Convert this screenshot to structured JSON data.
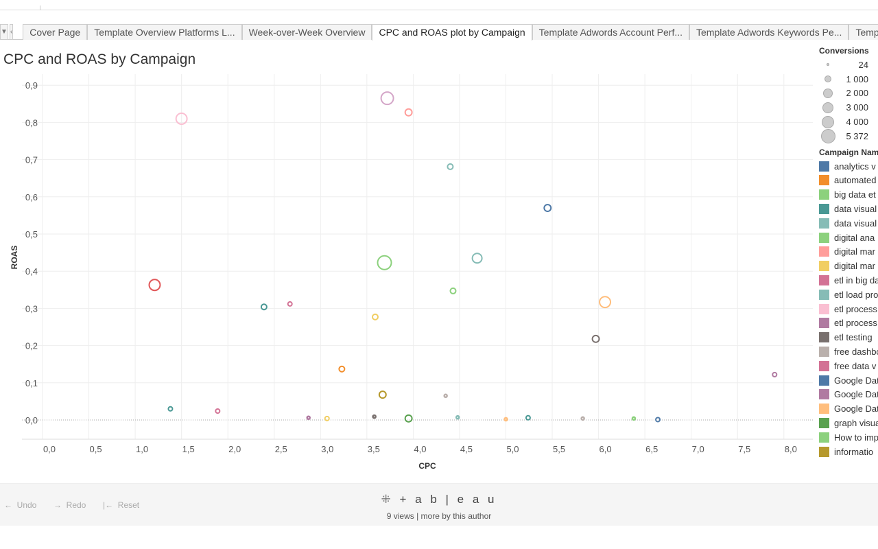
{
  "tabs": [
    "Cover Page",
    "Template Overview Platforms L...",
    "Week-over-Week Overview",
    "CPC and ROAS plot by Campaign",
    "Template Adwords Account Perf...",
    "Template Adwords Keywords Pe...",
    "Templa"
  ],
  "active_tab": 3,
  "title": "CPC and ROAS by Campaign",
  "size_legend": {
    "title": "Conversions",
    "items": [
      "24",
      "1 000",
      "2 000",
      "3 000",
      "4 000",
      "5 372"
    ]
  },
  "color_legend": {
    "title": "Campaign Name",
    "items": [
      {
        "label": "analytics v",
        "color": "#4e79a7"
      },
      {
        "label": "automated",
        "color": "#f28e2b"
      },
      {
        "label": "big data et",
        "color": "#8cd17d"
      },
      {
        "label": "data visual",
        "color": "#499894"
      },
      {
        "label": "data visual",
        "color": "#86bcb6"
      },
      {
        "label": "digital ana",
        "color": "#8cd17d"
      },
      {
        "label": "digital mar",
        "color": "#ff9d9a"
      },
      {
        "label": "digital mar",
        "color": "#f1ce63"
      },
      {
        "label": "etl in big da",
        "color": "#d37295"
      },
      {
        "label": "etl load pro",
        "color": "#86bcb6"
      },
      {
        "label": "etl process",
        "color": "#fabfd2"
      },
      {
        "label": "etl process",
        "color": "#b07aa1"
      },
      {
        "label": "etl testing",
        "color": "#79706e"
      },
      {
        "label": "free dashbo",
        "color": "#bab0ac"
      },
      {
        "label": "free data v",
        "color": "#d37295"
      },
      {
        "label": "Google Dat",
        "color": "#4e79a7"
      },
      {
        "label": "Google Dat",
        "color": "#b07aa1"
      },
      {
        "label": "Google Dat",
        "color": "#ffbe7d"
      },
      {
        "label": "graph visua",
        "color": "#59a14f"
      },
      {
        "label": "How to imp",
        "color": "#8cd17d"
      },
      {
        "label": "informatio",
        "color": "#b6992d"
      }
    ]
  },
  "chart_data": {
    "type": "scatter",
    "xlabel": "CPC",
    "ylabel": "ROAS",
    "xlim": [
      0,
      8.3
    ],
    "ylim": [
      -0.05,
      0.92
    ],
    "x_ticks": [
      "0,0",
      "0,5",
      "1,0",
      "1,5",
      "2,0",
      "2,5",
      "3,0",
      "3,5",
      "4,0",
      "4,5",
      "5,0",
      "5,5",
      "6,0",
      "6,5",
      "7,0",
      "7,5",
      "8,0"
    ],
    "y_ticks": [
      "0,0",
      "0,1",
      "0,2",
      "0,3",
      "0,4",
      "0,5",
      "0,6",
      "0,7",
      "0,8",
      "0,9"
    ],
    "grid": true,
    "points": [
      {
        "x": 1.5,
        "y": 0.81,
        "conversions": 3100,
        "color": "#fabfd2"
      },
      {
        "x": 3.72,
        "y": 0.865,
        "conversions": 3950,
        "color": "#d4a6c8"
      },
      {
        "x": 3.95,
        "y": 0.827,
        "conversions": 1200,
        "color": "#ff9d9a"
      },
      {
        "x": 4.4,
        "y": 0.681,
        "conversions": 780,
        "color": "#86bcb6"
      },
      {
        "x": 5.45,
        "y": 0.57,
        "conversions": 1200,
        "color": "#4e79a7"
      },
      {
        "x": 3.69,
        "y": 0.423,
        "conversions": 4870,
        "color": "#8cd17d"
      },
      {
        "x": 4.69,
        "y": 0.435,
        "conversions": 2390,
        "color": "#86bcb6"
      },
      {
        "x": 1.21,
        "y": 0.363,
        "conversions": 3100,
        "color": "#e15759"
      },
      {
        "x": 2.39,
        "y": 0.304,
        "conversions": 780,
        "color": "#499894"
      },
      {
        "x": 2.67,
        "y": 0.312,
        "conversions": 440,
        "color": "#d37295"
      },
      {
        "x": 4.43,
        "y": 0.347,
        "conversions": 780,
        "color": "#8cd17d"
      },
      {
        "x": 3.59,
        "y": 0.277,
        "conversions": 780,
        "color": "#f1ce63"
      },
      {
        "x": 6.07,
        "y": 0.317,
        "conversions": 3100,
        "color": "#ffbe7d"
      },
      {
        "x": 5.97,
        "y": 0.218,
        "conversions": 1200,
        "color": "#79706e"
      },
      {
        "x": 3.23,
        "y": 0.137,
        "conversions": 780,
        "color": "#f28e2b"
      },
      {
        "x": 3.67,
        "y": 0.068,
        "conversions": 1200,
        "color": "#b6992d"
      },
      {
        "x": 4.35,
        "y": 0.065,
        "conversions": 200,
        "color": "#bab0ac"
      },
      {
        "x": 7.9,
        "y": 0.122,
        "conversions": 440,
        "color": "#b07aa1"
      },
      {
        "x": 1.38,
        "y": 0.03,
        "conversions": 440,
        "color": "#499894"
      },
      {
        "x": 1.89,
        "y": 0.024,
        "conversions": 440,
        "color": "#d37295"
      },
      {
        "x": 2.87,
        "y": 0.006,
        "conversions": 200,
        "color": "#b07aa1"
      },
      {
        "x": 3.07,
        "y": 0.004,
        "conversions": 440,
        "color": "#f1ce63"
      },
      {
        "x": 3.58,
        "y": 0.009,
        "conversions": 200,
        "color": "#79706e"
      },
      {
        "x": 3.95,
        "y": 0.004,
        "conversions": 1200,
        "color": "#59a14f"
      },
      {
        "x": 4.48,
        "y": 0.007,
        "conversions": 200,
        "color": "#86bcb6"
      },
      {
        "x": 5.0,
        "y": 0.002,
        "conversions": 200,
        "color": "#ffbe7d"
      },
      {
        "x": 5.24,
        "y": 0.006,
        "conversions": 440,
        "color": "#499894"
      },
      {
        "x": 5.83,
        "y": 0.004,
        "conversions": 200,
        "color": "#bab0ac"
      },
      {
        "x": 6.38,
        "y": 0.004,
        "conversions": 200,
        "color": "#8cd17d"
      },
      {
        "x": 6.64,
        "y": 0.001,
        "conversions": 440,
        "color": "#4e79a7"
      }
    ]
  },
  "footer": {
    "undo": "Undo",
    "redo": "Redo",
    "reset": "Reset",
    "logo": "+ a b | e a u",
    "views": "9 views  |  more by this author"
  }
}
